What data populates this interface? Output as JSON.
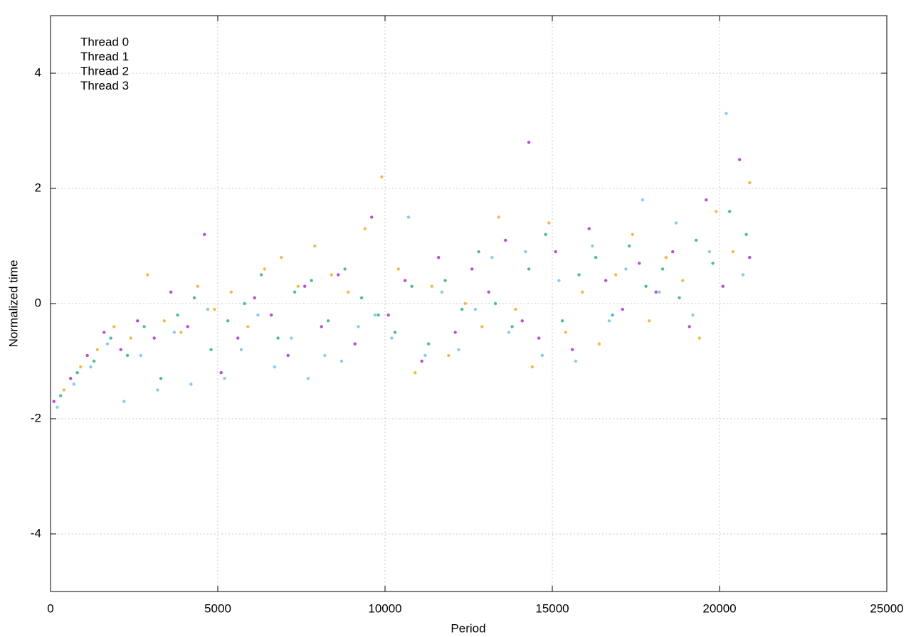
{
  "chart_data": {
    "type": "scatter",
    "xlabel": "Period",
    "ylabel": "Normalized time",
    "xlim": [
      0,
      25000
    ],
    "ylim": [
      -5,
      5
    ],
    "xticks": [
      0,
      5000,
      10000,
      15000,
      20000,
      25000
    ],
    "yticks": [
      -4,
      -2,
      0,
      2,
      4
    ],
    "grid": true,
    "legend": "top-left",
    "series": [
      {
        "name": "Thread 0",
        "color": "#9400d3",
        "x": [
          100,
          600,
          1100,
          1600,
          2100,
          2600,
          3100,
          3600,
          4100,
          4600,
          5100,
          5600,
          6100,
          6600,
          7100,
          7600,
          8100,
          8600,
          9100,
          9600,
          10100,
          10600,
          11100,
          11600,
          12100,
          12600,
          13100,
          13600,
          14100,
          14300,
          14600,
          15100,
          15600,
          16100,
          16600,
          17100,
          17600,
          18100,
          18600,
          19100,
          19600,
          20100,
          20600,
          20900
        ],
        "values": [
          -1.7,
          -1.3,
          -0.9,
          -0.5,
          -0.8,
          -0.3,
          -0.6,
          0.2,
          -0.4,
          1.2,
          -1.2,
          -0.6,
          0.1,
          -0.2,
          -0.9,
          0.3,
          -0.4,
          0.5,
          -0.7,
          1.5,
          -0.2,
          0.4,
          -1,
          0.8,
          -0.5,
          0.6,
          0.2,
          1.1,
          -0.3,
          2.8,
          -0.6,
          0.9,
          -0.8,
          1.3,
          0.4,
          -0.1,
          0.7,
          0.2,
          0.9,
          -0.4,
          1.8,
          0.3,
          2.5,
          0.8
        ]
      },
      {
        "name": "Thread 1",
        "color": "#009e73",
        "x": [
          300,
          800,
          1300,
          1800,
          2300,
          2800,
          3300,
          3800,
          4300,
          4800,
          5300,
          5800,
          6300,
          6800,
          7300,
          7800,
          8300,
          8800,
          9300,
          9800,
          10300,
          10800,
          11300,
          11800,
          12300,
          12800,
          13300,
          13800,
          14300,
          14800,
          15300,
          15800,
          16300,
          16800,
          17300,
          17800,
          18300,
          18800,
          19300,
          19800,
          20300,
          20800
        ],
        "values": [
          -1.6,
          -1.2,
          -1.0,
          -0.6,
          -0.9,
          -0.4,
          -1.3,
          -0.2,
          0.1,
          -0.8,
          -0.3,
          0.0,
          0.5,
          -0.6,
          0.2,
          0.4,
          -0.3,
          0.6,
          0.1,
          -0.2,
          -0.5,
          0.3,
          -0.7,
          0.4,
          -0.1,
          0.9,
          0.0,
          -0.4,
          0.6,
          1.2,
          -0.3,
          0.5,
          0.8,
          -0.2,
          1.0,
          0.3,
          0.6,
          0.1,
          1.1,
          0.7,
          1.6,
          1.2
        ]
      },
      {
        "name": "Thread 2",
        "color": "#56b4e9",
        "x": [
          200,
          700,
          1200,
          1700,
          2200,
          2700,
          3200,
          3700,
          4200,
          4700,
          5200,
          5700,
          6200,
          6700,
          7200,
          7700,
          8200,
          8700,
          9200,
          9700,
          10200,
          10700,
          11200,
          11700,
          12200,
          12700,
          13200,
          13700,
          14200,
          14700,
          15200,
          15700,
          16200,
          16700,
          17200,
          17700,
          18200,
          18700,
          19200,
          19700,
          20200,
          20700
        ],
        "values": [
          -1.8,
          -1.4,
          -1.1,
          -0.7,
          -1.7,
          -0.9,
          -1.5,
          -0.5,
          -1.4,
          -0.1,
          -1.3,
          -0.8,
          -0.2,
          -1.1,
          -0.6,
          -1.3,
          -0.9,
          -1.0,
          -0.4,
          -0.2,
          -0.6,
          1.5,
          -0.9,
          0.2,
          -0.8,
          -0.1,
          0.8,
          -0.5,
          0.9,
          -0.9,
          0.4,
          -1.0,
          1.0,
          -0.3,
          0.6,
          1.8,
          0.2,
          1.4,
          -0.2,
          0.9,
          3.3,
          0.5
        ]
      },
      {
        "name": "Thread 3",
        "color": "#e69f00",
        "x": [
          400,
          900,
          1400,
          1900,
          2400,
          2900,
          3400,
          3900,
          4400,
          4900,
          5400,
          5900,
          6400,
          6900,
          7400,
          7900,
          8400,
          8900,
          9400,
          9900,
          10400,
          10900,
          11400,
          11900,
          12400,
          12900,
          13400,
          13900,
          14400,
          14900,
          15400,
          15900,
          16400,
          16900,
          17400,
          17900,
          18400,
          18900,
          19400,
          19900,
          20400,
          20900
        ],
        "values": [
          -1.5,
          -1.1,
          -0.8,
          -0.4,
          -0.6,
          0.5,
          -0.3,
          -0.5,
          0.3,
          -0.1,
          0.2,
          -0.4,
          0.6,
          0.8,
          0.3,
          1.0,
          0.5,
          0.2,
          1.3,
          2.2,
          0.6,
          -1.2,
          0.3,
          -0.9,
          0.0,
          -0.4,
          1.5,
          -0.1,
          -1.1,
          1.4,
          -0.5,
          0.2,
          -0.7,
          0.5,
          1.2,
          -0.3,
          0.8,
          0.4,
          -0.6,
          1.6,
          0.9,
          2.1
        ]
      }
    ]
  }
}
